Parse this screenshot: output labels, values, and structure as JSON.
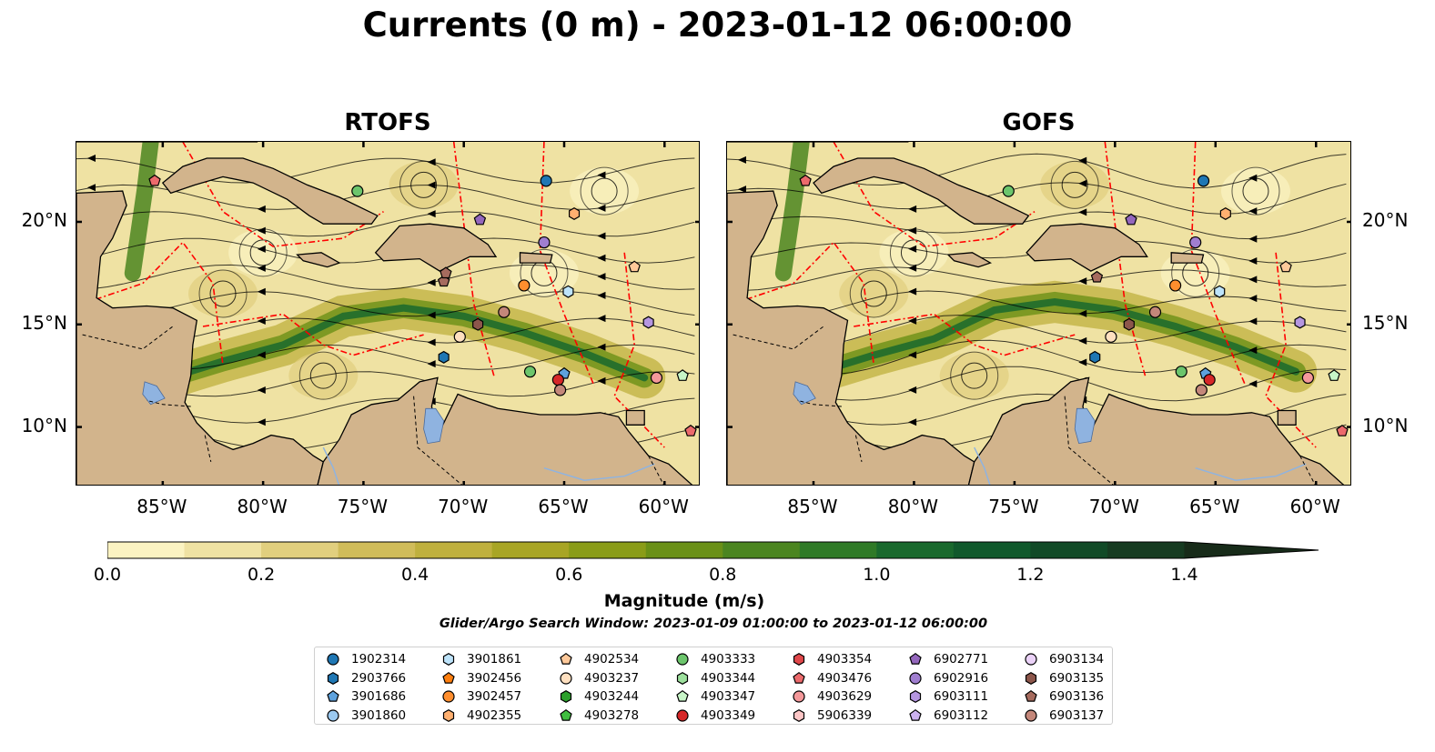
{
  "title": "Currents (0 m) - 2023-01-12 06:00:00",
  "panels": [
    {
      "title": "RTOFS"
    },
    {
      "title": "GOFS"
    }
  ],
  "axes": {
    "lon_range": [
      -89.3,
      -58.2
    ],
    "lat_range": [
      7.1,
      23.9
    ],
    "lon_ticks": [
      "85°W",
      "80°W",
      "75°W",
      "70°W",
      "65°W",
      "60°W"
    ],
    "lon_tick_values": [
      -85,
      -80,
      -75,
      -70,
      -65,
      -60
    ],
    "lat_ticks": [
      "20°N",
      "15°N",
      "10°N"
    ],
    "lat_tick_values": [
      20,
      15,
      10
    ]
  },
  "colorbar": {
    "label": "Magnitude (m/s)",
    "ticks": [
      "0.0",
      "0.2",
      "0.4",
      "0.6",
      "0.8",
      "1.0",
      "1.2",
      "1.4"
    ],
    "tick_values": [
      0.0,
      0.2,
      0.4,
      0.6,
      0.8,
      1.0,
      1.2,
      1.4
    ],
    "range": [
      0.0,
      1.5
    ],
    "extend": "max",
    "colors": [
      "#fbf3c2",
      "#efe2a3",
      "#e1cf7e",
      "#d0bc5a",
      "#bfb03e",
      "#a8a525",
      "#8a9c18",
      "#6a9017",
      "#4b8520",
      "#2f7a27",
      "#19692d",
      "#10592c",
      "#114a27",
      "#163b21",
      "#172b19"
    ]
  },
  "search_window": "Glider/Argo Search Window: 2023-01-09 01:00:00 to 2023-01-12 06:00:00",
  "colors": {
    "land": "#d2b48c",
    "eez_lines": "#ff0000",
    "lakes_rivers": "#8fb3e0",
    "streamlines": "#000000"
  },
  "legend": [
    {
      "id": "1902314",
      "color": "#1f77b4",
      "marker": "circle"
    },
    {
      "id": "2903766",
      "color": "#1f77b4",
      "marker": "hexagon"
    },
    {
      "id": "3901686",
      "color": "#5ea2dd",
      "marker": "pentagon"
    },
    {
      "id": "3901860",
      "color": "#9bc9f0",
      "marker": "circle"
    },
    {
      "id": "3901861",
      "color": "#bde3fa",
      "marker": "hexagon"
    },
    {
      "id": "3902456",
      "color": "#ff7f0e",
      "marker": "pentagon"
    },
    {
      "id": "3902457",
      "color": "#ff8e2e",
      "marker": "circle"
    },
    {
      "id": "4902355",
      "color": "#ffb070",
      "marker": "hexagon"
    },
    {
      "id": "4902534",
      "color": "#ffc99a",
      "marker": "pentagon"
    },
    {
      "id": "4903237",
      "color": "#ffe0c0",
      "marker": "circle"
    },
    {
      "id": "4903244",
      "color": "#2ca02c",
      "marker": "hexagon"
    },
    {
      "id": "4903278",
      "color": "#3fbe3f",
      "marker": "pentagon"
    },
    {
      "id": "4903333",
      "color": "#6cc56c",
      "marker": "circle"
    },
    {
      "id": "4903344",
      "color": "#9de09d",
      "marker": "hexagon"
    },
    {
      "id": "4903347",
      "color": "#c7f5c7",
      "marker": "pentagon"
    },
    {
      "id": "4903349",
      "color": "#d62728",
      "marker": "circle"
    },
    {
      "id": "4903354",
      "color": "#e0474a",
      "marker": "hexagon"
    },
    {
      "id": "4903476",
      "color": "#ec6a6c",
      "marker": "pentagon"
    },
    {
      "id": "4903629",
      "color": "#f4989a",
      "marker": "circle"
    },
    {
      "id": "5906339",
      "color": "#fcc6c6",
      "marker": "hexagon"
    },
    {
      "id": "6902771",
      "color": "#9467bd",
      "marker": "pentagon"
    },
    {
      "id": "6902916",
      "color": "#a07ed0",
      "marker": "circle"
    },
    {
      "id": "6903111",
      "color": "#b596e0",
      "marker": "hexagon"
    },
    {
      "id": "6903112",
      "color": "#cdb2f0",
      "marker": "pentagon"
    },
    {
      "id": "6903134",
      "color": "#ebd2f8",
      "marker": "circle"
    },
    {
      "id": "6903135",
      "color": "#8c564b",
      "marker": "hexagon"
    },
    {
      "id": "6903136",
      "color": "#a66b5e",
      "marker": "pentagon"
    },
    {
      "id": "6903137",
      "color": "#c4877a",
      "marker": "circle"
    }
  ],
  "floats": {
    "rtofs": [
      {
        "id": "1902314",
        "lon": -65.9,
        "lat": 22.0
      },
      {
        "id": "2903766",
        "lon": -71.0,
        "lat": 13.4
      },
      {
        "id": "3901686",
        "lon": -65.0,
        "lat": 12.6
      },
      {
        "id": "3901861",
        "lon": -64.8,
        "lat": 16.6
      },
      {
        "id": "3902457",
        "lon": -67.0,
        "lat": 16.9
      },
      {
        "id": "4902355",
        "lon": -64.5,
        "lat": 20.4
      },
      {
        "id": "4902534",
        "lon": -61.5,
        "lat": 17.8
      },
      {
        "id": "4903237",
        "lon": -70.2,
        "lat": 14.4
      },
      {
        "id": "4903333",
        "lon": -75.3,
        "lat": 21.5
      },
      {
        "id": "4903333",
        "lon": -66.7,
        "lat": 12.7
      },
      {
        "id": "4903347",
        "lon": -59.1,
        "lat": 12.5
      },
      {
        "id": "4903349",
        "lon": -65.3,
        "lat": 12.3
      },
      {
        "id": "4903476",
        "lon": -58.7,
        "lat": 9.8
      },
      {
        "id": "4903476",
        "lon": -85.4,
        "lat": 22.0
      },
      {
        "id": "4903629",
        "lon": -60.4,
        "lat": 12.4
      },
      {
        "id": "6902771",
        "lon": -69.2,
        "lat": 20.1
      },
      {
        "id": "6902916",
        "lon": -66.0,
        "lat": 19.0
      },
      {
        "id": "6903111",
        "lon": -60.8,
        "lat": 15.1
      },
      {
        "id": "6903135",
        "lon": -69.3,
        "lat": 15.0
      },
      {
        "id": "6903136",
        "lon": -71.0,
        "lat": 17.1
      },
      {
        "id": "6903136",
        "lon": -70.9,
        "lat": 17.5
      },
      {
        "id": "6903137",
        "lon": -68.0,
        "lat": 15.6
      },
      {
        "id": "6903137",
        "lon": -65.2,
        "lat": 11.8
      }
    ],
    "gofs": [
      {
        "id": "1902314",
        "lon": -65.6,
        "lat": 22.0
      },
      {
        "id": "2903766",
        "lon": -71.0,
        "lat": 13.4
      },
      {
        "id": "3901686",
        "lon": -65.5,
        "lat": 12.6
      },
      {
        "id": "3901861",
        "lon": -64.8,
        "lat": 16.6
      },
      {
        "id": "3902457",
        "lon": -67.0,
        "lat": 16.9
      },
      {
        "id": "4902355",
        "lon": -64.5,
        "lat": 20.4
      },
      {
        "id": "4902534",
        "lon": -61.5,
        "lat": 17.8
      },
      {
        "id": "4903237",
        "lon": -70.2,
        "lat": 14.4
      },
      {
        "id": "4903333",
        "lon": -75.3,
        "lat": 21.5
      },
      {
        "id": "4903333",
        "lon": -66.7,
        "lat": 12.7
      },
      {
        "id": "4903347",
        "lon": -59.1,
        "lat": 12.5
      },
      {
        "id": "4903349",
        "lon": -65.3,
        "lat": 12.3
      },
      {
        "id": "4903476",
        "lon": -58.7,
        "lat": 9.8
      },
      {
        "id": "4903476",
        "lon": -85.4,
        "lat": 22.0
      },
      {
        "id": "4903629",
        "lon": -60.4,
        "lat": 12.4
      },
      {
        "id": "6902771",
        "lon": -69.2,
        "lat": 20.1
      },
      {
        "id": "6902916",
        "lon": -66.0,
        "lat": 19.0
      },
      {
        "id": "6903111",
        "lon": -60.8,
        "lat": 15.1
      },
      {
        "id": "6903135",
        "lon": -69.3,
        "lat": 15.0
      },
      {
        "id": "6903136",
        "lon": -70.9,
        "lat": 17.3
      },
      {
        "id": "6903137",
        "lon": -68.0,
        "lat": 15.6
      },
      {
        "id": "6903137",
        "lon": -65.7,
        "lat": 11.8
      }
    ]
  },
  "land": {
    "cuba": [
      [
        -85.0,
        21.9
      ],
      [
        -84.0,
        22.7
      ],
      [
        -82.8,
        23.1
      ],
      [
        -81.0,
        23.1
      ],
      [
        -79.5,
        22.6
      ],
      [
        -77.8,
        21.8
      ],
      [
        -76.2,
        21.2
      ],
      [
        -74.3,
        20.3
      ],
      [
        -74.6,
        19.9
      ],
      [
        -77.0,
        19.9
      ],
      [
        -77.7,
        20.3
      ],
      [
        -78.8,
        21.1
      ],
      [
        -80.5,
        21.9
      ],
      [
        -82.0,
        22.2
      ],
      [
        -83.4,
        21.8
      ],
      [
        -84.6,
        21.4
      ]
    ],
    "hispaniola": [
      [
        -74.4,
        18.5
      ],
      [
        -73.2,
        19.8
      ],
      [
        -71.7,
        19.9
      ],
      [
        -70.0,
        19.7
      ],
      [
        -68.8,
        18.9
      ],
      [
        -68.4,
        18.3
      ],
      [
        -69.7,
        18.3
      ],
      [
        -71.2,
        17.6
      ],
      [
        -72.2,
        18.2
      ],
      [
        -74.0,
        18.1
      ]
    ],
    "jamaica": [
      [
        -78.3,
        18.4
      ],
      [
        -77.1,
        18.5
      ],
      [
        -76.2,
        18.0
      ],
      [
        -76.8,
        17.8
      ],
      [
        -78.0,
        18.1
      ]
    ],
    "puerto_rico": [
      [
        -67.2,
        18.5
      ],
      [
        -65.6,
        18.4
      ],
      [
        -65.7,
        18.0
      ],
      [
        -67.2,
        18.0
      ]
    ],
    "florida": [
      [
        -89.3,
        23.9
      ],
      [
        -80.3,
        23.9
      ],
      [
        -80.2,
        25.0
      ],
      [
        -89.3,
        25.0
      ]
    ],
    "yucatan_central_america": [
      [
        -89.3,
        21.4
      ],
      [
        -87.0,
        21.5
      ],
      [
        -86.8,
        20.8
      ],
      [
        -87.5,
        19.2
      ],
      [
        -88.1,
        18.3
      ],
      [
        -88.3,
        16.3
      ],
      [
        -87.5,
        15.8
      ],
      [
        -85.8,
        15.9
      ],
      [
        -84.5,
        15.8
      ],
      [
        -83.3,
        15.2
      ],
      [
        -83.5,
        14.0
      ],
      [
        -83.6,
        12.5
      ],
      [
        -83.9,
        11.2
      ],
      [
        -83.3,
        10.2
      ],
      [
        -82.4,
        9.3
      ],
      [
        -81.5,
        8.9
      ],
      [
        -80.5,
        9.2
      ],
      [
        -79.6,
        9.6
      ],
      [
        -78.5,
        9.4
      ],
      [
        -77.5,
        8.6
      ],
      [
        -77.0,
        8.3
      ],
      [
        -77.3,
        7.1
      ],
      [
        -89.3,
        7.1
      ]
    ],
    "south_america": [
      [
        -77.0,
        8.3
      ],
      [
        -76.2,
        9.4
      ],
      [
        -75.6,
        10.6
      ],
      [
        -74.6,
        11.1
      ],
      [
        -73.3,
        11.3
      ],
      [
        -72.2,
        12.2
      ],
      [
        -71.3,
        12.4
      ],
      [
        -71.6,
        11.0
      ],
      [
        -71.3,
        9.6
      ],
      [
        -71.0,
        10.2
      ],
      [
        -70.3,
        11.6
      ],
      [
        -69.8,
        11.4
      ],
      [
        -68.3,
        10.9
      ],
      [
        -66.2,
        10.6
      ],
      [
        -64.4,
        10.6
      ],
      [
        -63.2,
        10.7
      ],
      [
        -62.3,
        10.5
      ],
      [
        -61.8,
        9.8
      ],
      [
        -60.8,
        8.6
      ],
      [
        -59.8,
        8.2
      ],
      [
        -58.2,
        6.8
      ],
      [
        -58.2,
        7.1
      ],
      [
        -77.3,
        7.1
      ]
    ],
    "trinidad": [
      [
        -61.9,
        10.8
      ],
      [
        -61.0,
        10.8
      ],
      [
        -61.0,
        10.1
      ],
      [
        -61.9,
        10.1
      ]
    ]
  },
  "lakes": {
    "maracaibo": [
      [
        -71.9,
        10.9
      ],
      [
        -71.4,
        10.9
      ],
      [
        -71.0,
        10.3
      ],
      [
        -71.2,
        9.3
      ],
      [
        -71.8,
        9.2
      ],
      [
        -72.0,
        9.9
      ]
    ],
    "nicaragua": [
      [
        -85.9,
        12.2
      ],
      [
        -85.3,
        12.0
      ],
      [
        -84.9,
        11.4
      ],
      [
        -85.6,
        11.1
      ],
      [
        -86.0,
        11.6
      ]
    ]
  }
}
